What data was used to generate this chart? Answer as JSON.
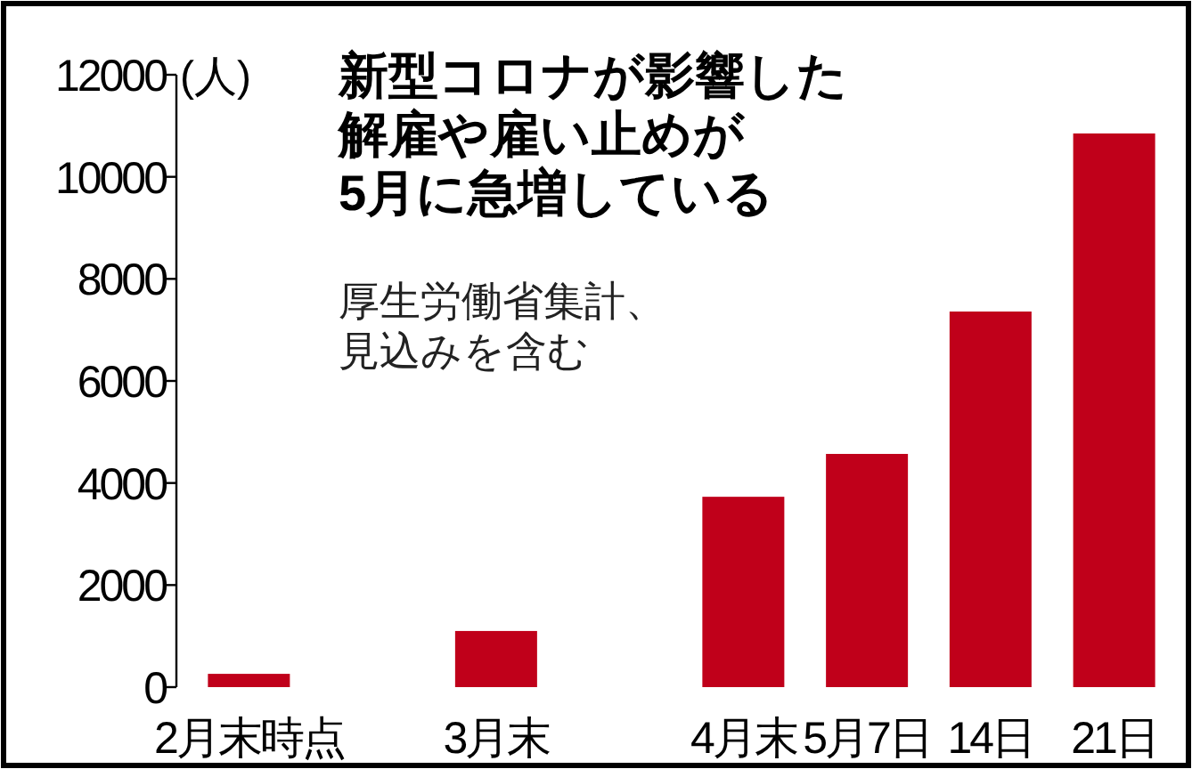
{
  "chart_data": {
    "type": "bar",
    "title": "新型コロナが影響した解雇や雇い止めが5月に急増している",
    "subtitle": "厚生労働省集計、見込みを含む",
    "ylabel": "(人)",
    "categories": [
      "2月末時点",
      null,
      "3月末",
      null,
      "4月末",
      "5月7日",
      "14日",
      "21日"
    ],
    "values": [
      260,
      null,
      1100,
      null,
      3730,
      4570,
      7360,
      10850
    ],
    "color": "#c0001a",
    "ylim": [
      0,
      12000
    ],
    "yticks": [
      0,
      2000,
      4000,
      6000,
      8000,
      10000,
      12000
    ],
    "grid": false
  }
}
